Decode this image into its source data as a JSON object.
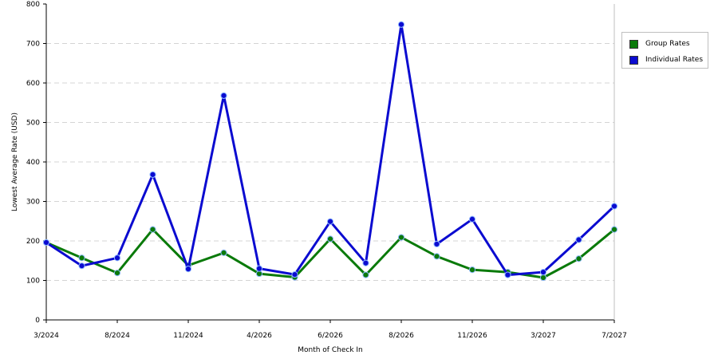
{
  "chart_data": {
    "type": "line",
    "xlabel": "Month of Check In",
    "ylabel": "Lowest Average Rate (USD)",
    "ylim": [
      0,
      800
    ],
    "yticks": [
      0,
      100,
      200,
      300,
      400,
      500,
      600,
      700,
      800
    ],
    "x_tick_labels": [
      "3/2024",
      "8/2024",
      "11/2024",
      "4/2026",
      "6/2026",
      "8/2026",
      "11/2026",
      "3/2027",
      "7/2027"
    ],
    "x_tick_indices": [
      0,
      2,
      4,
      6,
      8,
      10,
      12,
      14,
      16
    ],
    "point_count": 17,
    "grid": "horizontal dashed",
    "legend_position": "top-right",
    "series": [
      {
        "name": "Group Rates",
        "color": "#0a7a0a",
        "values": [
          196,
          157,
          119,
          229,
          138,
          170,
          117,
          108,
          205,
          114,
          209,
          161,
          127,
          121,
          107,
          155,
          229
        ]
      },
      {
        "name": "Individual Rates",
        "color": "#0b0bd0",
        "values": [
          196,
          137,
          157,
          368,
          129,
          568,
          130,
          115,
          249,
          144,
          748,
          192,
          255,
          114,
          121,
          203,
          288
        ]
      }
    ]
  }
}
